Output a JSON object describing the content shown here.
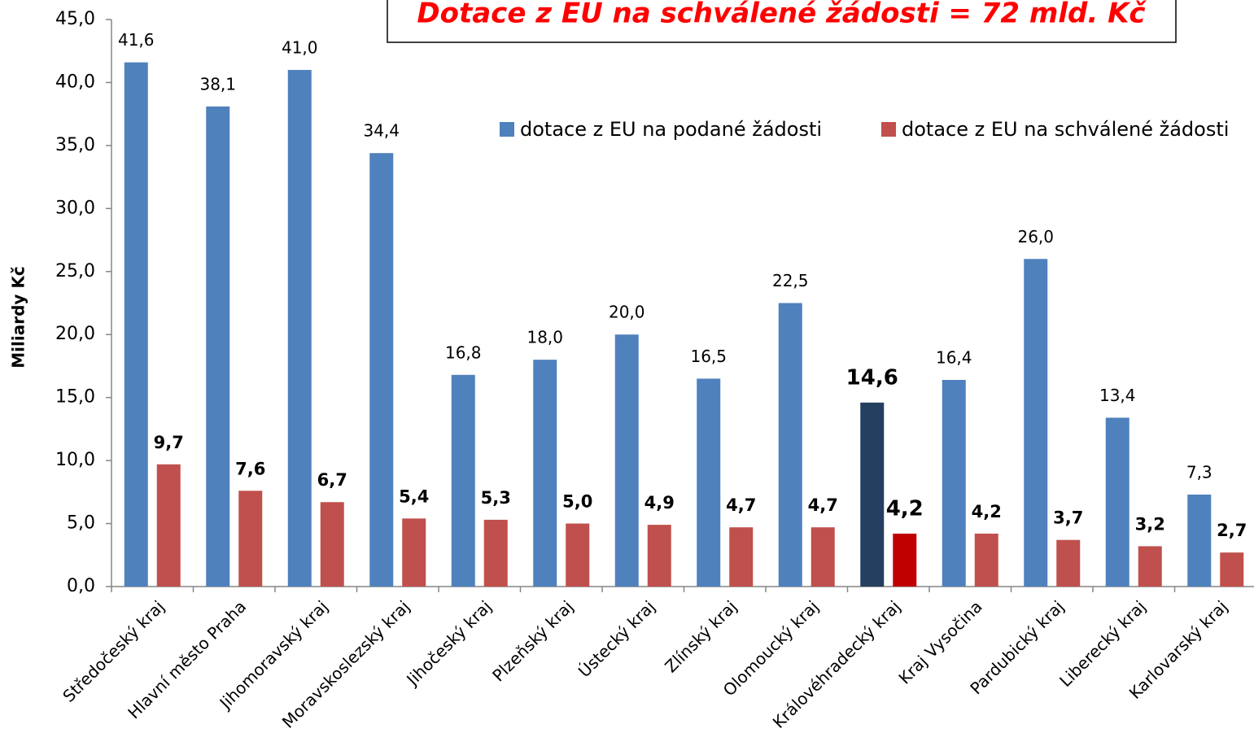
{
  "chart_data": {
    "type": "bar",
    "annotation": "Dotace z EU na schválené žádosti = 72 mld. Kč",
    "y_axis_label": "Miliardy Kč",
    "categories": [
      "Středočeský kraj",
      "Hlavní město Praha",
      "Jihomoravský kraj",
      "Moravskoslezský kraj",
      "Jihočeský kraj",
      "Plzeňský kraj",
      "Ústecký kraj",
      "Zlínský kraj",
      "Olomoucký kraj",
      "Královéhradecký kraj",
      "Kraj Vysočina",
      "Pardubický kraj",
      "Liberecký kraj",
      "Karlovarský kraj"
    ],
    "series": [
      {
        "name": "dotace z EU na podané žádosti",
        "color": "#4f81bd",
        "colors": [
          "#4f81bd",
          "#4f81bd",
          "#4f81bd",
          "#4f81bd",
          "#4f81bd",
          "#4f81bd",
          "#4f81bd",
          "#4f81bd",
          "#4f81bd",
          "#243f60",
          "#4f81bd",
          "#4f81bd",
          "#4f81bd",
          "#4f81bd"
        ],
        "values": [
          41.6,
          38.1,
          41.0,
          34.4,
          16.8,
          18.0,
          20.0,
          16.5,
          22.5,
          14.6,
          16.4,
          26.0,
          13.4,
          7.3
        ],
        "value_labels": [
          "41,6",
          "38,1",
          "41,0",
          "34,4",
          "16,8",
          "18,0",
          "20,0",
          "16,5",
          "22,5",
          "14,6",
          "16,4",
          "26,0",
          "13,4",
          "7,3"
        ]
      },
      {
        "name": "dotace z EU na schválené žádosti",
        "color": "#c0504d",
        "colors": [
          "#c0504d",
          "#c0504d",
          "#c0504d",
          "#c0504d",
          "#c0504d",
          "#c0504d",
          "#c0504d",
          "#c0504d",
          "#c0504d",
          "#c00000",
          "#c0504d",
          "#c0504d",
          "#c0504d",
          "#c0504d"
        ],
        "values": [
          9.7,
          7.6,
          6.7,
          5.4,
          5.3,
          5.0,
          4.9,
          4.7,
          4.7,
          4.2,
          4.2,
          3.7,
          3.2,
          2.7
        ],
        "value_labels": [
          "9,7",
          "7,6",
          "6,7",
          "5,4",
          "5,3",
          "5,0",
          "4,9",
          "4,7",
          "4,7",
          "4,2",
          "4,2",
          "3,7",
          "3,2",
          "2,7"
        ]
      }
    ],
    "ylim": [
      0,
      45
    ],
    "yticks": [
      {
        "value": 0,
        "label": "0,0"
      },
      {
        "value": 5,
        "label": "5,0"
      },
      {
        "value": 10,
        "label": "10,0"
      },
      {
        "value": 15,
        "label": "15,0"
      },
      {
        "value": 20,
        "label": "20,0"
      },
      {
        "value": 25,
        "label": "25,0"
      },
      {
        "value": 30,
        "label": "30,0"
      },
      {
        "value": 35,
        "label": "35,0"
      },
      {
        "value": 40,
        "label": "40,0"
      },
      {
        "value": 45,
        "label": "45,0"
      }
    ],
    "grid": false,
    "legend": "top-right"
  }
}
